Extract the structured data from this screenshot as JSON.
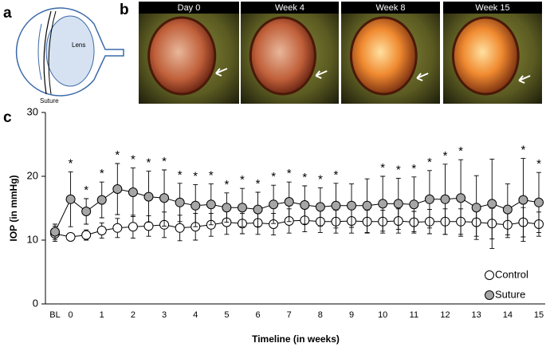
{
  "figure": {
    "panel_a": {
      "letter": "a",
      "lens_label": "Lens",
      "suture_label": "Suture"
    },
    "panel_b": {
      "letter": "b",
      "photos": [
        "Day 0",
        "Week 4",
        "Week 8",
        "Week 15"
      ]
    },
    "panel_c": {
      "letter": "c"
    }
  },
  "chart_data": {
    "type": "line",
    "y_label": "IOP (in mmHg)",
    "x_label": "Timeline (in weeks)",
    "categories": [
      "BL",
      "0",
      null,
      "1",
      null,
      "2",
      null,
      "3",
      null,
      "4",
      null,
      "5",
      null,
      "6",
      null,
      "7",
      null,
      "8",
      null,
      "9",
      null,
      "10",
      null,
      "11",
      null,
      "12",
      null,
      "13",
      null,
      "14",
      null,
      "15"
    ],
    "ylim": [
      0,
      30
    ],
    "yticks": [
      0,
      10,
      20,
      30
    ],
    "grid": false,
    "legend": "lower-right",
    "series": [
      {
        "name": "Control",
        "color": "#ffffff",
        "values": [
          11.0,
          10.5,
          10.8,
          11.5,
          11.9,
          12.1,
          12.2,
          12.4,
          11.9,
          12.1,
          12.4,
          12.8,
          12.6,
          12.7,
          12.5,
          13.0,
          13.1,
          12.9,
          12.9,
          13.0,
          12.9,
          12.9,
          13.0,
          12.8,
          12.9,
          12.9,
          12.9,
          12.8,
          12.6,
          12.4,
          12.8,
          12.5
        ],
        "errors": [
          1.2,
          0.6,
          0.8,
          1.2,
          1.5,
          1.8,
          1.6,
          2.0,
          2.0,
          2.1,
          1.8,
          1.9,
          1.6,
          1.8,
          1.7,
          1.9,
          1.8,
          1.7,
          1.8,
          1.9,
          1.8,
          1.8,
          1.9,
          1.7,
          1.9,
          2.0,
          2.0,
          2.2,
          2.4,
          2.0,
          2.3,
          1.9
        ]
      },
      {
        "name": "Suture",
        "color": "#a6a6a6",
        "values": [
          11.3,
          16.4,
          14.5,
          16.3,
          18.0,
          17.5,
          16.8,
          16.6,
          15.9,
          15.4,
          15.6,
          15.1,
          15.1,
          14.8,
          15.6,
          16.0,
          15.5,
          15.2,
          15.4,
          15.4,
          15.4,
          15.7,
          15.7,
          15.6,
          16.4,
          16.4,
          16.6,
          15.1,
          15.7,
          14.8,
          16.3,
          15.9
        ],
        "errors": [
          1.2,
          4.3,
          2.0,
          2.8,
          4.0,
          3.8,
          4.0,
          4.4,
          3.0,
          3.3,
          3.2,
          2.3,
          3.0,
          2.7,
          3.0,
          3.1,
          3.0,
          3.0,
          3.5,
          3.4,
          4.2,
          4.3,
          4.0,
          4.3,
          4.5,
          5.5,
          6.0,
          5.0,
          7.0,
          4.0,
          6.5,
          4.7
        ]
      }
    ],
    "significance": [
      null,
      "*",
      "*",
      "*",
      "*",
      "*",
      "*",
      "*",
      "*",
      "*",
      "*",
      "*",
      "*",
      "*",
      "*",
      "*",
      "*",
      "*",
      "*",
      null,
      null,
      "*",
      "*",
      "*",
      "*",
      "*",
      "*",
      null,
      null,
      null,
      "*",
      "*"
    ]
  }
}
